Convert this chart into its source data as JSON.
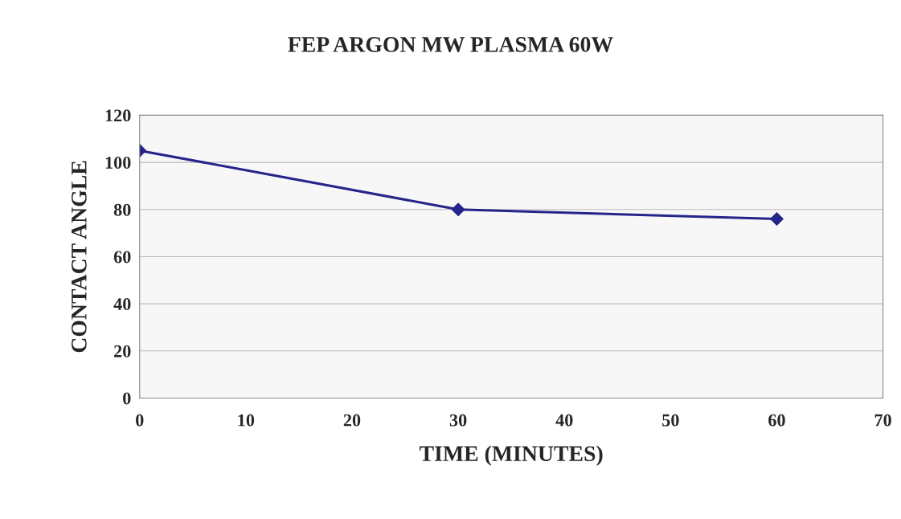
{
  "chart_data": {
    "type": "line",
    "title": "FEP ARGON MW PLASMA 60W",
    "xlabel": "TIME (MINUTES)",
    "ylabel": "CONTACT ANGLE",
    "series": [
      {
        "x": [
          0,
          30,
          60
        ],
        "values": [
          105,
          80,
          76
        ],
        "color": "#25248a"
      }
    ],
    "xlim": [
      0,
      70
    ],
    "xticks": [
      0,
      10,
      20,
      30,
      40,
      50,
      60,
      70
    ],
    "ylim": [
      0,
      120
    ],
    "yticks": [
      0,
      20,
      40,
      60,
      80,
      100,
      120
    ],
    "grid": "y",
    "marker": "diamond",
    "line_style": "solid",
    "legend": false
  }
}
